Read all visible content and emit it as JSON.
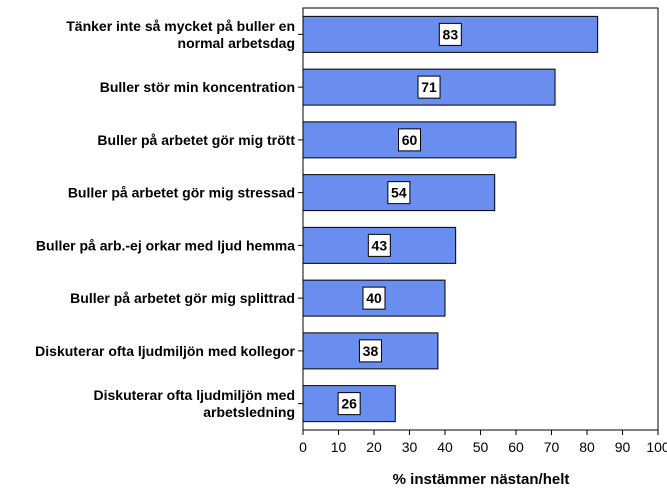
{
  "chart_data": {
    "type": "bar",
    "orientation": "horizontal",
    "categories": [
      [
        "Tänker inte så mycket på buller en",
        "normal arbetsdag"
      ],
      [
        "Buller stör min koncentration"
      ],
      [
        "Buller på arbetet gör mig trött"
      ],
      [
        "Buller på arbetet gör mig stressad"
      ],
      [
        "Buller på arb.-ej orkar med ljud hemma"
      ],
      [
        "Buller på arbetet gör mig splittrad"
      ],
      [
        "Diskuterar ofta ljudmiljön med kollegor"
      ],
      [
        "Diskuterar ofta ljudmiljön med",
        "arbetsledning"
      ]
    ],
    "values": [
      83,
      71,
      60,
      54,
      43,
      40,
      38,
      26
    ],
    "data_labels": [
      "83",
      "71",
      "60",
      "54",
      "43",
      "40",
      "38",
      "26"
    ],
    "xlabel": "% instämmer nästan/helt",
    "ylabel": "",
    "xlim": [
      0,
      100
    ],
    "xticks": [
      0,
      10,
      20,
      30,
      40,
      50,
      60,
      70,
      80,
      90,
      100
    ],
    "grid": false,
    "legend": "none",
    "bar_color": "#6a8ef0",
    "bar_edge_color": "#000000"
  }
}
